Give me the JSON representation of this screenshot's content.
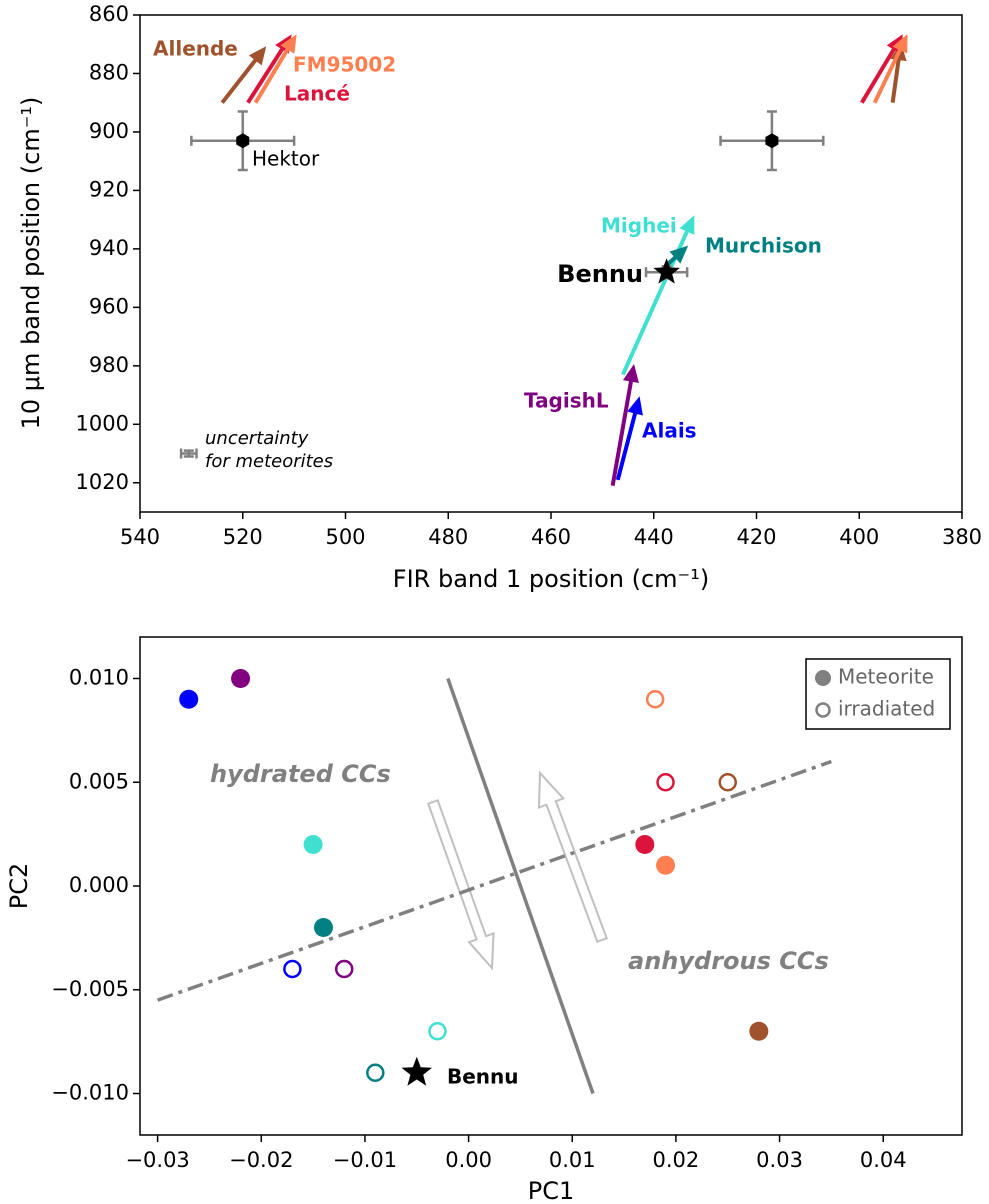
{
  "chart_data": [
    {
      "type": "vector",
      "xlabel": "FIR band 1 position (cm⁻¹)",
      "ylabel": "10 μm band position (cm⁻¹)",
      "xlim": [
        540,
        380
      ],
      "ylim": [
        1030,
        860
      ],
      "xticks": [
        540,
        520,
        500,
        480,
        460,
        440,
        420,
        400,
        380
      ],
      "yticks": [
        860,
        880,
        900,
        920,
        940,
        960,
        980,
        1000,
        1020
      ],
      "series": [
        {
          "name": "Allende",
          "color": "#a0522d",
          "arrows": [
            {
              "x": [
                524,
                516
              ],
              "y": [
                890,
                872
              ]
            },
            {
              "x": [
                393.5,
                392
              ],
              "y": [
                890,
                871
              ]
            }
          ]
        },
        {
          "name": "Lancé",
          "color": "#dc143c",
          "arrows": [
            {
              "x": [
                519,
                511
              ],
              "y": [
                890,
                868
              ]
            },
            {
              "x": [
                399.5,
                392
              ],
              "y": [
                890,
                868
              ]
            }
          ]
        },
        {
          "name": "FM95002",
          "color": "#ff7f50",
          "arrows": [
            {
              "x": [
                517.5,
                510
              ],
              "y": [
                890,
                868
              ]
            },
            {
              "x": [
                397,
                391
              ],
              "y": [
                890,
                868
              ]
            }
          ]
        },
        {
          "name": "Mighei",
          "color": "#40e0d0",
          "arrows": [
            {
              "x": [
                446,
                432.5
              ],
              "y": [
                983,
                930
              ]
            }
          ]
        },
        {
          "name": "Murchison",
          "color": "#008080",
          "arrows": [
            {
              "x": [
                439,
                434
              ],
              "y": [
                948,
                940
              ]
            }
          ]
        },
        {
          "name": "TagishL",
          "color": "#800080",
          "arrows": [
            {
              "x": [
                448,
                444
              ],
              "y": [
                1021,
                981
              ]
            }
          ]
        },
        {
          "name": "Alais",
          "color": "#0000ff",
          "arrows": [
            {
              "x": [
                447,
                443
              ],
              "y": [
                1019,
                992
              ]
            }
          ]
        }
      ],
      "points": [
        {
          "name": "Hektor",
          "x": 520,
          "y": 903,
          "xerr": 10,
          "yerr": 10,
          "marker": "hexagon"
        },
        {
          "x": 417,
          "y": 903,
          "xerr": 10,
          "yerr": 10,
          "marker": "hexagon"
        },
        {
          "name": "Bennu",
          "x": 437.5,
          "y": 948,
          "xerr": 4,
          "yerr": 2,
          "marker": "star"
        }
      ],
      "uncertainty": {
        "x": 530.5,
        "y": 1010,
        "xerr": 1.5,
        "yerr": 1,
        "label": [
          "uncertainty",
          "for meteorites"
        ]
      },
      "errorbar_color": "#808080"
    },
    {
      "type": "scatter",
      "xlabel": "PC1",
      "ylabel": "PC2",
      "xlim": [
        -0.0317,
        0.0476
      ],
      "ylim": [
        -0.012,
        0.012
      ],
      "xticks": [
        {
          "value": -0.03,
          "label": "−0.03"
        },
        {
          "value": -0.02,
          "label": "−0.02"
        },
        {
          "value": -0.01,
          "label": "−0.01"
        },
        {
          "value": 0,
          "label": "0.00"
        },
        {
          "value": 0.01,
          "label": "0.01"
        },
        {
          "value": 0.02,
          "label": "0.02"
        },
        {
          "value": 0.03,
          "label": "0.03"
        },
        {
          "value": 0.04,
          "label": "0.04"
        }
      ],
      "yticks": [
        {
          "value": 0.01,
          "label": "0.010"
        },
        {
          "value": 0.005,
          "label": "0.005"
        },
        {
          "value": 0,
          "label": "0.000"
        },
        {
          "value": -0.005,
          "label": "−0.005"
        },
        {
          "value": -0.01,
          "label": "−0.010"
        }
      ],
      "legend": "upper right",
      "legend_color": "#808080",
      "series": [
        {
          "name": "Meteorite",
          "filled": true,
          "x": [
            -0.027,
            -0.022,
            -0.015,
            -0.014,
            0.017,
            0.019,
            0.028
          ],
          "y": [
            0.009,
            0.01,
            0.002,
            -0.002,
            0.002,
            0.001,
            -0.007
          ],
          "colors": [
            "#0000ff",
            "#800080",
            "#40e0d0",
            "#008080",
            "#dc143c",
            "#ff7f50",
            "#a0522d"
          ]
        },
        {
          "name": "irradiated",
          "filled": false,
          "x": [
            -0.017,
            -0.012,
            -0.003,
            -0.009,
            0.018,
            0.019,
            0.025
          ],
          "y": [
            -0.004,
            -0.004,
            -0.007,
            -0.009,
            0.009,
            0.005,
            0.005
          ],
          "colors": [
            "#0000ff",
            "#800080",
            "#40e0d0",
            "#008080",
            "#ff7f50",
            "#dc143c",
            "#a0522d"
          ]
        }
      ],
      "stars": [
        {
          "label": "Bennu",
          "x": -0.005,
          "y": -0.009
        }
      ],
      "lines": [
        {
          "style": "solid",
          "color": "#808080",
          "x": [
            -0.002,
            0.012
          ],
          "y": [
            0.01,
            -0.01
          ]
        },
        {
          "style": "dashdot",
          "color": "#808080",
          "x": [
            -0.03,
            0.035
          ],
          "y": [
            -0.0055,
            0.006
          ]
        }
      ],
      "annotations": [
        "hydrated CCs",
        "anhydrous CCs"
      ]
    }
  ]
}
